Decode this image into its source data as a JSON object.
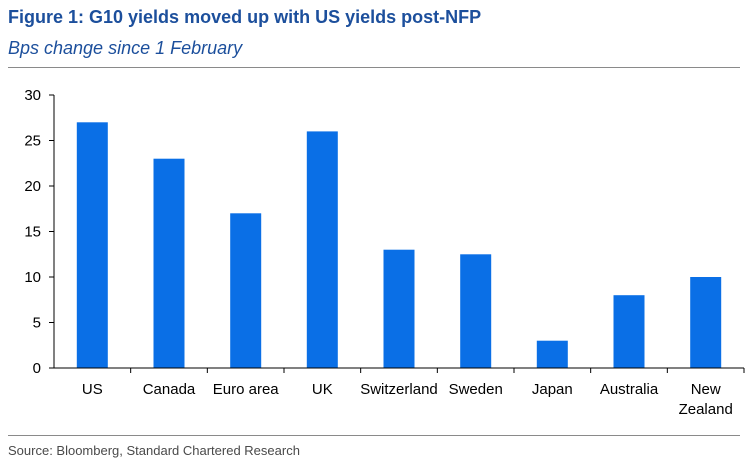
{
  "header": {
    "title": "Figure 1: G10 yields moved up with US yields post-NFP",
    "subtitle": "Bps change since 1 February"
  },
  "footer": {
    "source": "Source: Bloomberg, Standard Chartered Research"
  },
  "colors": {
    "bar": "#0a6fe6",
    "title": "#1c4f9c",
    "axis": "#000000"
  },
  "chart_data": {
    "type": "bar",
    "title": "Figure 1: G10 yields moved up with US yields post-NFP",
    "subtitle": "Bps change since 1 February",
    "xlabel": "",
    "ylabel": "",
    "ylim": [
      0,
      30
    ],
    "yticks": [
      0,
      5,
      10,
      15,
      20,
      25,
      30
    ],
    "grid": false,
    "categories": [
      [
        "US"
      ],
      [
        "Canada"
      ],
      [
        "Euro area"
      ],
      [
        "UK"
      ],
      [
        "Switzerland"
      ],
      [
        "Sweden"
      ],
      [
        "Japan"
      ],
      [
        "Australia"
      ],
      [
        "New",
        "Zealand"
      ]
    ],
    "values": [
      27,
      23,
      17,
      26,
      13,
      12.5,
      3,
      8,
      10
    ]
  }
}
